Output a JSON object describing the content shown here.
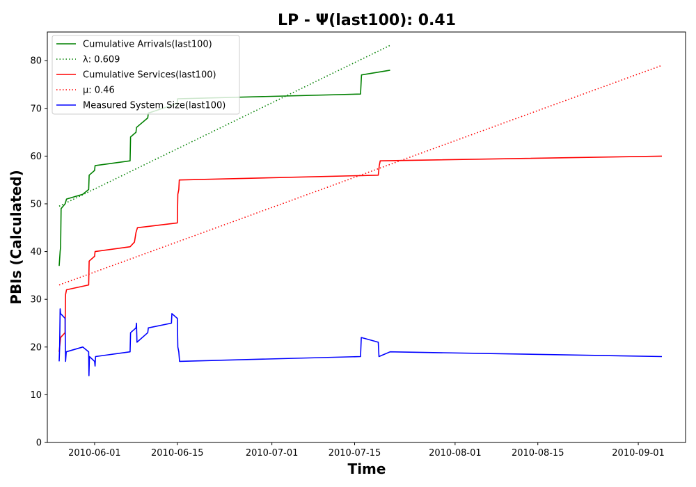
{
  "chart_data": {
    "type": "line",
    "title": "LP -  Ψ(last100): 0.41",
    "xlabel": "Time",
    "ylabel": "PBIs (Calculated)",
    "xlim": [
      "2010-05-24",
      "2010-09-09"
    ],
    "ylim": [
      0,
      86
    ],
    "x_ticks": [
      "2010-06-01",
      "2010-06-15",
      "2010-07-01",
      "2010-07-15",
      "2010-08-01",
      "2010-08-15",
      "2010-09-01"
    ],
    "y_ticks": [
      0,
      10,
      20,
      30,
      40,
      50,
      60,
      70,
      80
    ],
    "grid": false,
    "legend_position": "upper left",
    "series": [
      {
        "name": "Cumulative Arrivals(last100)",
        "color": "#008000",
        "style": "solid",
        "points": [
          [
            "2010-05-26T00:00",
            37
          ],
          [
            "2010-05-26T04:00",
            40
          ],
          [
            "2010-05-26T06:00",
            41
          ],
          [
            "2010-05-26T08:00",
            49
          ],
          [
            "2010-05-27T00:00",
            50
          ],
          [
            "2010-05-27T06:00",
            51
          ],
          [
            "2010-05-30T00:00",
            52
          ],
          [
            "2010-05-31T00:00",
            53
          ],
          [
            "2010-05-31T02:00",
            56
          ],
          [
            "2010-06-01T00:00",
            57
          ],
          [
            "2010-06-01T02:00",
            58
          ],
          [
            "2010-06-07T00:00",
            59
          ],
          [
            "2010-06-07T02:00",
            64
          ],
          [
            "2010-06-08T00:00",
            65
          ],
          [
            "2010-06-08T02:00",
            66
          ],
          [
            "2010-06-10T00:00",
            68
          ],
          [
            "2010-06-10T02:00",
            69
          ],
          [
            "2010-06-14T23:00",
            71
          ],
          [
            "2010-06-15T01:00",
            72
          ],
          [
            "2010-07-16T00:00",
            73
          ],
          [
            "2010-07-16T04:00",
            77
          ],
          [
            "2010-07-21T00:00",
            78
          ]
        ]
      },
      {
        "name": "λ: 0.609",
        "color": "#008000",
        "style": "dotted",
        "points": [
          [
            "2010-05-26T00:00",
            49.5
          ],
          [
            "2010-07-21T00:00",
            83.2
          ]
        ]
      },
      {
        "name": "Cumulative Services(last100)",
        "color": "#ff0000",
        "style": "solid",
        "points": [
          [
            "2010-05-26T00:00",
            19
          ],
          [
            "2010-05-26T06:00",
            22
          ],
          [
            "2010-05-27T00:00",
            23
          ],
          [
            "2010-05-27T02:00",
            31
          ],
          [
            "2010-05-27T06:00",
            32
          ],
          [
            "2010-05-31T00:00",
            33
          ],
          [
            "2010-05-31T02:00",
            38
          ],
          [
            "2010-06-01T00:00",
            39
          ],
          [
            "2010-06-01T02:00",
            40
          ],
          [
            "2010-06-07T00:00",
            41
          ],
          [
            "2010-06-07T18:00",
            42
          ],
          [
            "2010-06-08T00:00",
            44
          ],
          [
            "2010-06-08T06:00",
            45
          ],
          [
            "2010-06-15T00:00",
            46
          ],
          [
            "2010-06-15T02:00",
            52
          ],
          [
            "2010-06-15T06:00",
            53
          ],
          [
            "2010-06-15T08:00",
            55
          ],
          [
            "2010-07-19T00:00",
            56
          ],
          [
            "2010-07-19T04:00",
            58
          ],
          [
            "2010-07-19T08:00",
            59
          ],
          [
            "2010-09-05T00:00",
            60
          ]
        ]
      },
      {
        "name": "μ: 0.46",
        "color": "#ff0000",
        "style": "dotted",
        "points": [
          [
            "2010-05-26T00:00",
            33.0
          ],
          [
            "2010-09-05T00:00",
            79.0
          ]
        ]
      },
      {
        "name": "Measured System Size(last100)",
        "color": "#0000ff",
        "style": "solid",
        "points": [
          [
            "2010-05-26T00:00",
            17
          ],
          [
            "2010-05-26T02:00",
            20
          ],
          [
            "2010-05-26T04:00",
            28
          ],
          [
            "2010-05-26T06:00",
            27
          ],
          [
            "2010-05-27T00:00",
            26
          ],
          [
            "2010-05-27T02:00",
            17
          ],
          [
            "2010-05-27T05:00",
            19
          ],
          [
            "2010-05-30T00:00",
            20
          ],
          [
            "2010-05-31T00:00",
            19
          ],
          [
            "2010-05-31T01:00",
            14
          ],
          [
            "2010-05-31T03:00",
            18
          ],
          [
            "2010-06-01T00:00",
            17
          ],
          [
            "2010-06-01T02:00",
            16
          ],
          [
            "2010-06-01T04:00",
            18
          ],
          [
            "2010-06-07T00:00",
            19
          ],
          [
            "2010-06-07T02:00",
            23
          ],
          [
            "2010-06-08T00:00",
            24
          ],
          [
            "2010-06-08T02:00",
            25
          ],
          [
            "2010-06-08T04:00",
            21
          ],
          [
            "2010-06-10T00:00",
            23
          ],
          [
            "2010-06-10T02:00",
            24
          ],
          [
            "2010-06-14T00:00",
            25
          ],
          [
            "2010-06-14T02:00",
            27
          ],
          [
            "2010-06-15T00:00",
            26
          ],
          [
            "2010-06-15T02:00",
            20
          ],
          [
            "2010-06-15T06:00",
            19
          ],
          [
            "2010-06-15T09:00",
            17
          ],
          [
            "2010-07-16T00:00",
            18
          ],
          [
            "2010-07-16T03:00",
            22
          ],
          [
            "2010-07-19T00:00",
            21
          ],
          [
            "2010-07-19T03:00",
            18
          ],
          [
            "2010-07-21T00:00",
            19
          ],
          [
            "2010-09-05T00:00",
            18
          ]
        ]
      }
    ]
  }
}
